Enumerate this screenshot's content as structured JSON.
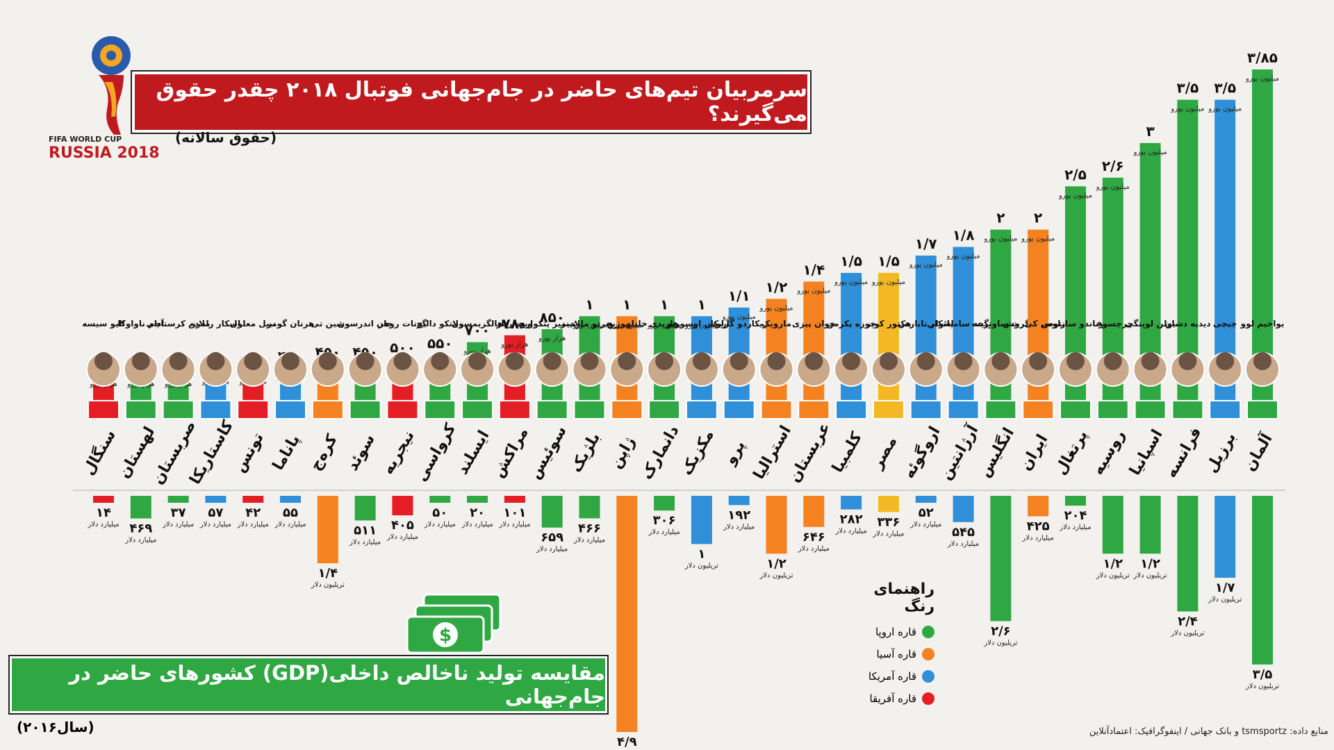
{
  "header": {
    "title": "سرمربیان تیم‌های حاضر در جام‌جهانی فوتبال ۲۰۱۸ چقدر حقوق می‌گیرند؟",
    "subtitle": "(حقوق سالانه)",
    "logo_text_top": "FIFA WORLD CUP",
    "logo_text_main": "RUSSIA 2018"
  },
  "gdp_section": {
    "title": "مقایسه تولید ناخالص داخلی(GDP) کشورهای حاضر در جام‌جهانی",
    "year": "(سال۲۰۱۶)"
  },
  "legend": {
    "title": "راهنمای رنگ",
    "items": [
      {
        "label": "قاره اروپا",
        "color": "#2fa843"
      },
      {
        "label": "قاره آسیا",
        "color": "#f58220"
      },
      {
        "label": "قاره آمریکا",
        "color": "#2f8fd8"
      },
      {
        "label": "قاره آفریقا",
        "color": "#e31e24"
      }
    ]
  },
  "source": "منابع داده: tsmsportz و بانک جهانی / اینفوگرافیک: اعتمادآنلاین",
  "colors": {
    "europe": "#2fa843",
    "asia": "#f58220",
    "americas": "#2f8fd8",
    "africa": "#e31e24",
    "yellow": "#f4b824"
  },
  "chart_data": [
    {
      "type": "bar",
      "title": "سرمربیان تیم‌های حاضر در جام‌جهانی فوتبال ۲۰۱۸ چقدر حقوق می‌گیرند؟",
      "series": [
        {
          "name": "حقوق سالانه",
          "values": [
            200,
            270,
            300,
            350,
            350,
            400,
            450,
            450,
            500,
            550,
            700,
            780,
            850,
            1000,
            1000,
            1000,
            1000,
            1100,
            1200,
            1400,
            1500,
            1500,
            1700,
            1800,
            2000,
            2000,
            2500,
            2600,
            3000,
            3500,
            3500,
            3850
          ]
        }
      ],
      "categories": [
        "سنگال",
        "لهستان",
        "صربستان",
        "کاستاریکا",
        "تونس",
        "پاناما",
        "کره‌ج",
        "سوئد",
        "نیجریه",
        "کرواسی",
        "ایسلند",
        "مراکش",
        "سوئیس",
        "بلژیک",
        "ژاپن",
        "دانمارک",
        "مکزیک",
        "پرو",
        "استرالیا",
        "عربستان",
        "کلمبیا",
        "مصر",
        "اروگوئه",
        "آرژانتین",
        "انگلیس",
        "ایران",
        "پرتغال",
        "روسیه",
        "اسپانیا",
        "فرانسه",
        "برزیل",
        "آلمان"
      ],
      "value_labels": [
        "۲۰۰",
        "۲۷۰",
        "۳۰۰",
        "۳۵۰",
        "۳۵۰",
        "۴۰۰",
        "۴۵۰",
        "۴۵۰",
        "۵۰۰",
        "۵۵۰",
        "۷۰۰",
        "۷۸۰",
        "۸۵۰",
        "۱",
        "۱",
        "۱",
        "۱",
        "۱/۱",
        "۱/۲",
        "۱/۴",
        "۱/۵",
        "۱/۵",
        "۱/۷",
        "۱/۸",
        "۲",
        "۲",
        "۲/۵",
        "۲/۶",
        "۳",
        "۳/۵",
        "۳/۵",
        "۳/۸۵"
      ],
      "units": [
        "هزار یورو",
        "هزار یورو",
        "هزار یورو",
        "هزار یورو",
        "هزار یورو",
        "هزار یورو",
        "هزار یورو",
        "هزار یورو",
        "هزار یورو",
        "هزار یورو",
        "هزار یورو",
        "هزار یورو",
        "هزار یورو",
        "میلیون یورو",
        "میلیون یورو",
        "میلیون یورو",
        "میلیون یورو",
        "میلیون یورو",
        "میلیون یورو",
        "میلیون یورو",
        "میلیون یورو",
        "میلیون یورو",
        "میلیون یورو",
        "میلیون یورو",
        "میلیون یورو",
        "میلیون یورو",
        "میلیون یورو",
        "میلیون یورو",
        "میلیون یورو",
        "میلیون یورو",
        "میلیون یورو",
        "میلیون یورو"
      ],
      "coaches": [
        "الیو سیسه",
        "آدام ناواوکا",
        "ملادم کرستاچی",
        "اسکار رامرز",
        "نبیل معلول",
        "هرنان گومز",
        "شین تی",
        "جان اندرسون",
        "گرنات روهر",
        "زلاتکو دالیچ",
        "هالگریمسون",
        "اروه رنار",
        "ولادیمیر پتکوویچ",
        "روبرتو مارتینز",
        "خلیلهوژیچ",
        "هاریدی",
        "کارلوس اوسوریو",
        "ریکاردو گاریکا",
        "مارویک",
        "خوان پیزی",
        "خوزه پکرمن",
        "هکتور کوپر",
        "اسکار تابارس",
        "خورخه سامپائولی",
        "گرث ساوتگیت",
        "کارلوس کی‌روش",
        "فرناندو سانتوس",
        "چرچسوف",
        "یولن لوپتگی",
        "دیدیه دشان",
        "چیچی",
        "یواخیم لوو"
      ],
      "coach_colors": [
        "africa",
        "europe",
        "europe",
        "americas",
        "africa",
        "americas",
        "asia",
        "europe",
        "africa",
        "europe",
        "europe",
        "africa",
        "europe",
        "europe",
        "asia",
        "europe",
        "americas",
        "americas",
        "asia",
        "asia",
        "americas",
        "yellow",
        "americas",
        "americas",
        "europe",
        "asia",
        "europe",
        "europe",
        "europe",
        "europe",
        "americas",
        "europe"
      ],
      "ylabel": "حقوق سالانه (هزار یورو)"
    },
    {
      "type": "bar",
      "title": "مقایسه تولید ناخالص داخلی(GDP) کشورهای حاضر در جام‌جهانی",
      "categories": [
        "سنگال",
        "لهستان",
        "صربستان",
        "کاستاریکا",
        "تونس",
        "پاناما",
        "کره‌ج",
        "سوئد",
        "نیجریه",
        "کرواسی",
        "ایسلند",
        "مراکش",
        "سوئیس",
        "بلژیک",
        "ژاپن",
        "دانمارک",
        "مکزیک",
        "پرو",
        "استرالیا",
        "عربستان",
        "کلمبیا",
        "مصر",
        "اروگوئه",
        "آرژانتین",
        "انگلیس",
        "ایران",
        "پرتغال",
        "روسیه",
        "اسپانیا",
        "فرانسه",
        "برزیل",
        "آلمان"
      ],
      "series": [
        {
          "name": "GDP (سال۲۰۱۶)",
          "values": [
            14,
            469,
            37,
            57,
            42,
            55,
            1400,
            511,
            405,
            50,
            20,
            101,
            659,
            466,
            4900,
            306,
            1000,
            192,
            1200,
            646,
            282,
            336,
            52,
            545,
            2600,
            425,
            204,
            1200,
            1200,
            2400,
            1700,
            3500
          ]
        }
      ],
      "value_labels": [
        "۱۴",
        "۴۶۹",
        "۳۷",
        "۵۷",
        "۴۲",
        "۵۵",
        "۱/۴",
        "۵۱۱",
        "۴۰۵",
        "۵۰",
        "۲۰",
        "۱۰۱",
        "۶۵۹",
        "۴۶۶",
        "۴/۹",
        "۳۰۶",
        "۱",
        "۱۹۲",
        "۱/۲",
        "۶۴۶",
        "۲۸۲",
        "۳۳۶",
        "۵۲",
        "۵۴۵",
        "۲/۶",
        "۴۲۵",
        "۲۰۴",
        "۱/۲",
        "۱/۲",
        "۲/۴",
        "۱/۷",
        "۳/۵"
      ],
      "units": [
        "میلیارد دلار",
        "میلیارد دلار",
        "میلیارد دلار",
        "میلیارد دلار",
        "میلیارد دلار",
        "میلیارد دلار",
        "تریلیون دلار",
        "میلیارد دلار",
        "میلیارد دلار",
        "میلیارد دلار",
        "میلیارد دلار",
        "میلیارد دلار",
        "میلیارد دلار",
        "میلیارد دلار",
        "تریلیون دلار",
        "میلیارد دلار",
        "تریلیون دلار",
        "میلیارد دلار",
        "تریلیون دلار",
        "میلیارد دلار",
        "میلیارد دلار",
        "میلیارد دلار",
        "میلیارد دلار",
        "میلیارد دلار",
        "تریلیون دلار",
        "میلیارد دلار",
        "میلیارد دلار",
        "تریلیون دلار",
        "تریلیون دلار",
        "تریلیون دلار",
        "تریلیون دلار",
        "تریلیون دلار"
      ],
      "ylabel": "GDP (میلیارد دلار)"
    }
  ]
}
